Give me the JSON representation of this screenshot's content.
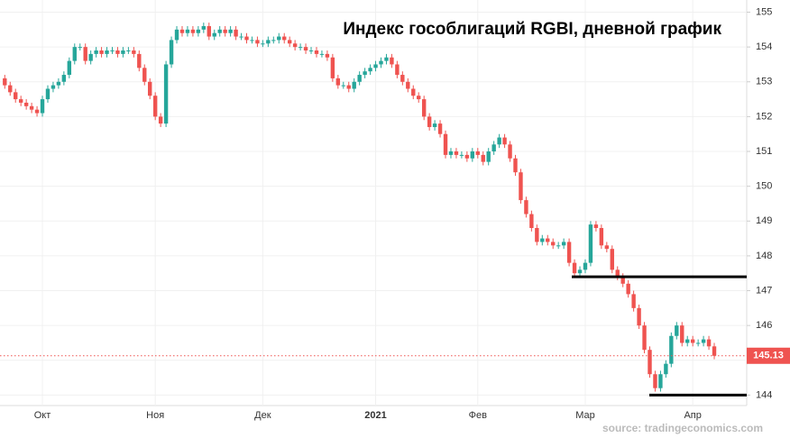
{
  "chart_data": {
    "type": "candlestick",
    "title": "Индекс гособлигаций RGBI, дневной график",
    "source": "source: tradingeconomics.com",
    "categories": [
      null,
      null,
      null,
      null,
      null,
      null,
      null,
      "Окт",
      null,
      null,
      null,
      null,
      null,
      null,
      null,
      null,
      null,
      null,
      null,
      null,
      null,
      null,
      null,
      null,
      null,
      null,
      null,
      null,
      "Ноя",
      null,
      null,
      null,
      null,
      null,
      null,
      null,
      null,
      null,
      null,
      null,
      null,
      null,
      null,
      null,
      null,
      null,
      null,
      null,
      "Дек",
      null,
      null,
      null,
      null,
      null,
      null,
      null,
      null,
      null,
      null,
      null,
      null,
      null,
      null,
      null,
      null,
      null,
      null,
      null,
      null,
      "2021",
      null,
      null,
      null,
      null,
      null,
      null,
      null,
      null,
      null,
      null,
      null,
      null,
      null,
      null,
      null,
      null,
      null,
      null,
      "Фев",
      null,
      null,
      null,
      null,
      null,
      null,
      null,
      null,
      null,
      null,
      null,
      null,
      null,
      null,
      null,
      null,
      null,
      null,
      null,
      "Мар",
      null,
      null,
      null,
      null,
      null,
      null,
      null,
      null,
      null,
      null,
      null,
      null,
      null,
      null,
      null,
      null,
      null,
      null,
      null,
      "Апр",
      null,
      null,
      null,
      null
    ],
    "open": [
      153.1,
      152.9,
      152.7,
      152.5,
      152.4,
      152.3,
      152.2,
      152.1,
      152.5,
      152.8,
      152.9,
      153.0,
      153.2,
      153.6,
      154.0,
      154.0,
      153.6,
      153.8,
      153.9,
      153.8,
      153.9,
      153.9,
      153.8,
      153.9,
      153.9,
      153.8,
      153.4,
      153.0,
      152.6,
      152.0,
      151.8,
      153.5,
      154.2,
      154.5,
      154.4,
      154.5,
      154.4,
      154.5,
      154.6,
      154.3,
      154.4,
      154.5,
      154.4,
      154.5,
      154.3,
      154.3,
      154.2,
      154.2,
      154.1,
      154.1,
      154.2,
      154.2,
      154.3,
      154.2,
      154.1,
      154.0,
      154.0,
      153.9,
      153.9,
      153.8,
      153.8,
      153.7,
      153.1,
      152.9,
      152.9,
      152.8,
      153.0,
      153.2,
      153.3,
      153.4,
      153.5,
      153.6,
      153.7,
      153.5,
      153.2,
      153.0,
      152.8,
      152.6,
      152.5,
      152.0,
      151.7,
      151.8,
      151.5,
      150.9,
      151.0,
      150.9,
      150.9,
      150.8,
      151.0,
      150.9,
      150.7,
      151.0,
      151.2,
      151.4,
      151.2,
      150.8,
      150.4,
      149.6,
      149.2,
      148.8,
      148.4,
      148.5,
      148.4,
      148.3,
      148.3,
      148.4,
      147.8,
      147.5,
      147.6,
      147.8,
      148.9,
      148.8,
      148.3,
      148.2,
      147.6,
      147.4,
      147.2,
      146.9,
      146.5,
      146.0,
      145.3,
      144.6,
      144.2,
      144.6,
      144.9,
      145.7,
      146.0,
      145.5,
      145.6,
      145.5,
      145.5,
      145.6,
      145.4
    ],
    "high": [
      153.2,
      153.0,
      152.8,
      152.6,
      152.5,
      152.4,
      152.3,
      152.6,
      152.9,
      153.0,
      153.1,
      153.3,
      153.7,
      154.1,
      154.1,
      154.1,
      153.9,
      154.0,
      154.0,
      154.0,
      154.0,
      154.0,
      154.0,
      154.0,
      154.0,
      153.9,
      153.5,
      153.1,
      152.7,
      152.1,
      153.6,
      154.3,
      154.6,
      154.6,
      154.6,
      154.6,
      154.6,
      154.7,
      154.7,
      154.5,
      154.6,
      154.6,
      154.6,
      154.6,
      154.4,
      154.4,
      154.3,
      154.3,
      154.2,
      154.3,
      154.3,
      154.4,
      154.4,
      154.3,
      154.2,
      154.1,
      154.1,
      154.0,
      154.0,
      153.9,
      153.9,
      153.8,
      153.2,
      153.0,
      153.0,
      153.1,
      153.3,
      153.4,
      153.5,
      153.6,
      153.7,
      153.8,
      153.8,
      153.6,
      153.3,
      153.1,
      152.9,
      152.7,
      152.6,
      152.1,
      151.9,
      151.9,
      151.6,
      151.1,
      151.1,
      151.0,
      151.0,
      151.1,
      151.1,
      151.0,
      151.1,
      151.3,
      151.5,
      151.5,
      151.3,
      150.9,
      150.5,
      149.7,
      149.3,
      148.9,
      148.6,
      148.6,
      148.5,
      148.4,
      148.5,
      148.5,
      147.9,
      147.7,
      147.9,
      149.0,
      149.0,
      148.9,
      148.4,
      148.3,
      147.7,
      147.5,
      147.3,
      147.0,
      146.6,
      146.1,
      145.4,
      144.7,
      144.7,
      145.0,
      145.8,
      146.1,
      146.1,
      145.7,
      145.7,
      145.6,
      145.7,
      145.7,
      145.5
    ],
    "low": [
      152.8,
      152.6,
      152.4,
      152.3,
      152.2,
      152.1,
      152.0,
      152.0,
      152.4,
      152.7,
      152.8,
      152.9,
      153.1,
      153.5,
      153.9,
      153.5,
      153.5,
      153.7,
      153.7,
      153.7,
      153.8,
      153.7,
      153.7,
      153.8,
      153.7,
      153.3,
      152.9,
      152.5,
      151.9,
      151.7,
      151.7,
      153.4,
      154.1,
      154.3,
      154.3,
      154.3,
      154.3,
      154.4,
      154.2,
      154.2,
      154.3,
      154.3,
      154.3,
      154.2,
      154.2,
      154.1,
      154.1,
      154.0,
      154.0,
      154.0,
      154.1,
      154.1,
      154.1,
      154.0,
      153.9,
      153.9,
      153.8,
      153.8,
      153.7,
      153.7,
      153.6,
      153.0,
      152.8,
      152.8,
      152.7,
      152.7,
      152.9,
      153.1,
      153.2,
      153.3,
      153.4,
      153.5,
      153.4,
      153.1,
      152.9,
      152.7,
      152.5,
      152.4,
      151.9,
      151.6,
      151.6,
      151.4,
      150.8,
      150.8,
      150.8,
      150.8,
      150.7,
      150.7,
      150.8,
      150.6,
      150.6,
      150.9,
      151.1,
      151.1,
      150.7,
      150.3,
      149.5,
      149.1,
      148.7,
      148.3,
      148.3,
      148.3,
      148.2,
      148.2,
      148.2,
      147.7,
      147.4,
      147.4,
      147.5,
      147.7,
      148.7,
      148.2,
      148.1,
      147.5,
      147.3,
      147.1,
      146.8,
      146.4,
      145.9,
      145.2,
      144.5,
      144.1,
      144.1,
      144.5,
      144.8,
      145.6,
      145.4,
      145.4,
      145.4,
      145.4,
      145.4,
      145.3,
      145.03
    ],
    "close": [
      152.9,
      152.7,
      152.5,
      152.4,
      152.3,
      152.2,
      152.1,
      152.5,
      152.8,
      152.9,
      153.0,
      153.2,
      153.6,
      154.0,
      154.0,
      153.6,
      153.8,
      153.9,
      153.8,
      153.9,
      153.9,
      153.8,
      153.9,
      153.9,
      153.8,
      153.4,
      153.0,
      152.6,
      152.0,
      151.8,
      153.5,
      154.2,
      154.5,
      154.4,
      154.5,
      154.4,
      154.5,
      154.6,
      154.3,
      154.4,
      154.5,
      154.4,
      154.5,
      154.3,
      154.3,
      154.2,
      154.2,
      154.1,
      154.1,
      154.2,
      154.2,
      154.3,
      154.2,
      154.1,
      154.0,
      154.0,
      153.9,
      153.9,
      153.8,
      153.8,
      153.7,
      153.1,
      152.9,
      152.9,
      152.8,
      153.0,
      153.2,
      153.3,
      153.4,
      153.5,
      153.6,
      153.7,
      153.5,
      153.2,
      153.0,
      152.8,
      152.6,
      152.5,
      152.0,
      151.7,
      151.8,
      151.5,
      150.9,
      151.0,
      150.9,
      150.9,
      150.8,
      151.0,
      150.9,
      150.7,
      151.0,
      151.2,
      151.4,
      151.2,
      150.8,
      150.4,
      149.6,
      149.2,
      148.8,
      148.4,
      148.5,
      148.4,
      148.3,
      148.3,
      148.4,
      147.8,
      147.5,
      147.6,
      147.8,
      148.9,
      148.8,
      148.3,
      148.2,
      147.6,
      147.4,
      147.2,
      146.9,
      146.5,
      146.0,
      145.3,
      144.6,
      144.2,
      144.6,
      144.9,
      145.7,
      146.0,
      145.5,
      145.6,
      145.5,
      145.5,
      145.6,
      145.4,
      145.13
    ],
    "up_color": "#26a69a",
    "down_color": "#ef5350",
    "hlines": [
      147.4,
      144.0
    ],
    "ylim": [
      143.7,
      155.35
    ],
    "yticks": [
      144,
      145,
      146,
      147,
      148,
      149,
      150,
      151,
      152,
      153,
      154,
      155
    ],
    "grid": true
  }
}
